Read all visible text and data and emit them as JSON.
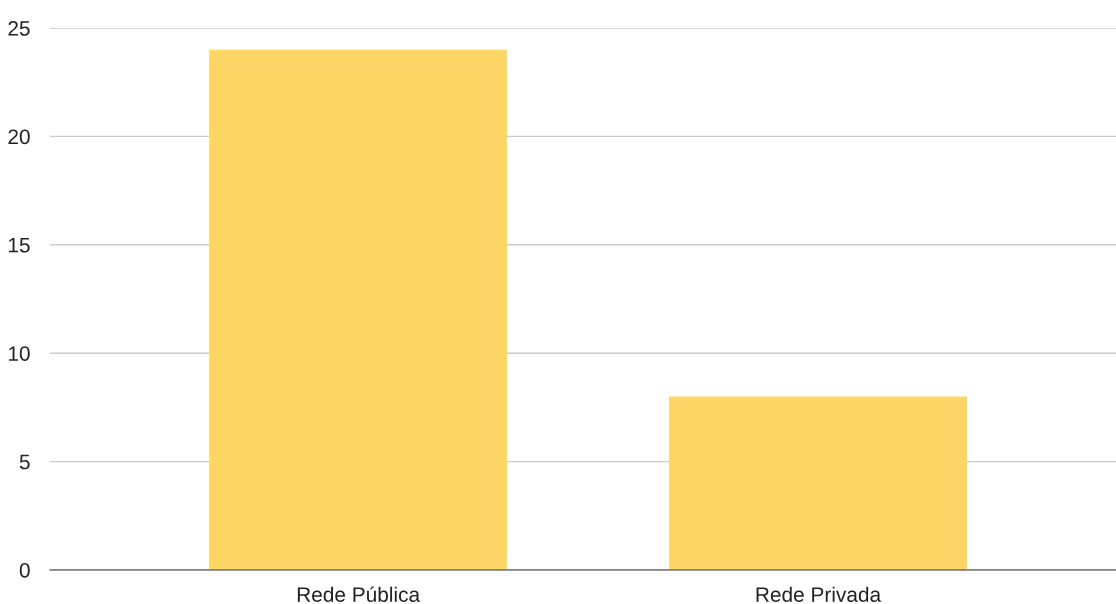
{
  "chart_data": {
    "type": "bar",
    "categories": [
      "Rede Pública",
      "Rede Privada"
    ],
    "series": [
      {
        "color": "#fdd766",
        "values": [
          24,
          8
        ]
      }
    ],
    "ylim": [
      0,
      25
    ],
    "yticks": [
      0,
      5,
      10,
      15,
      20,
      25
    ],
    "grid": "y"
  }
}
